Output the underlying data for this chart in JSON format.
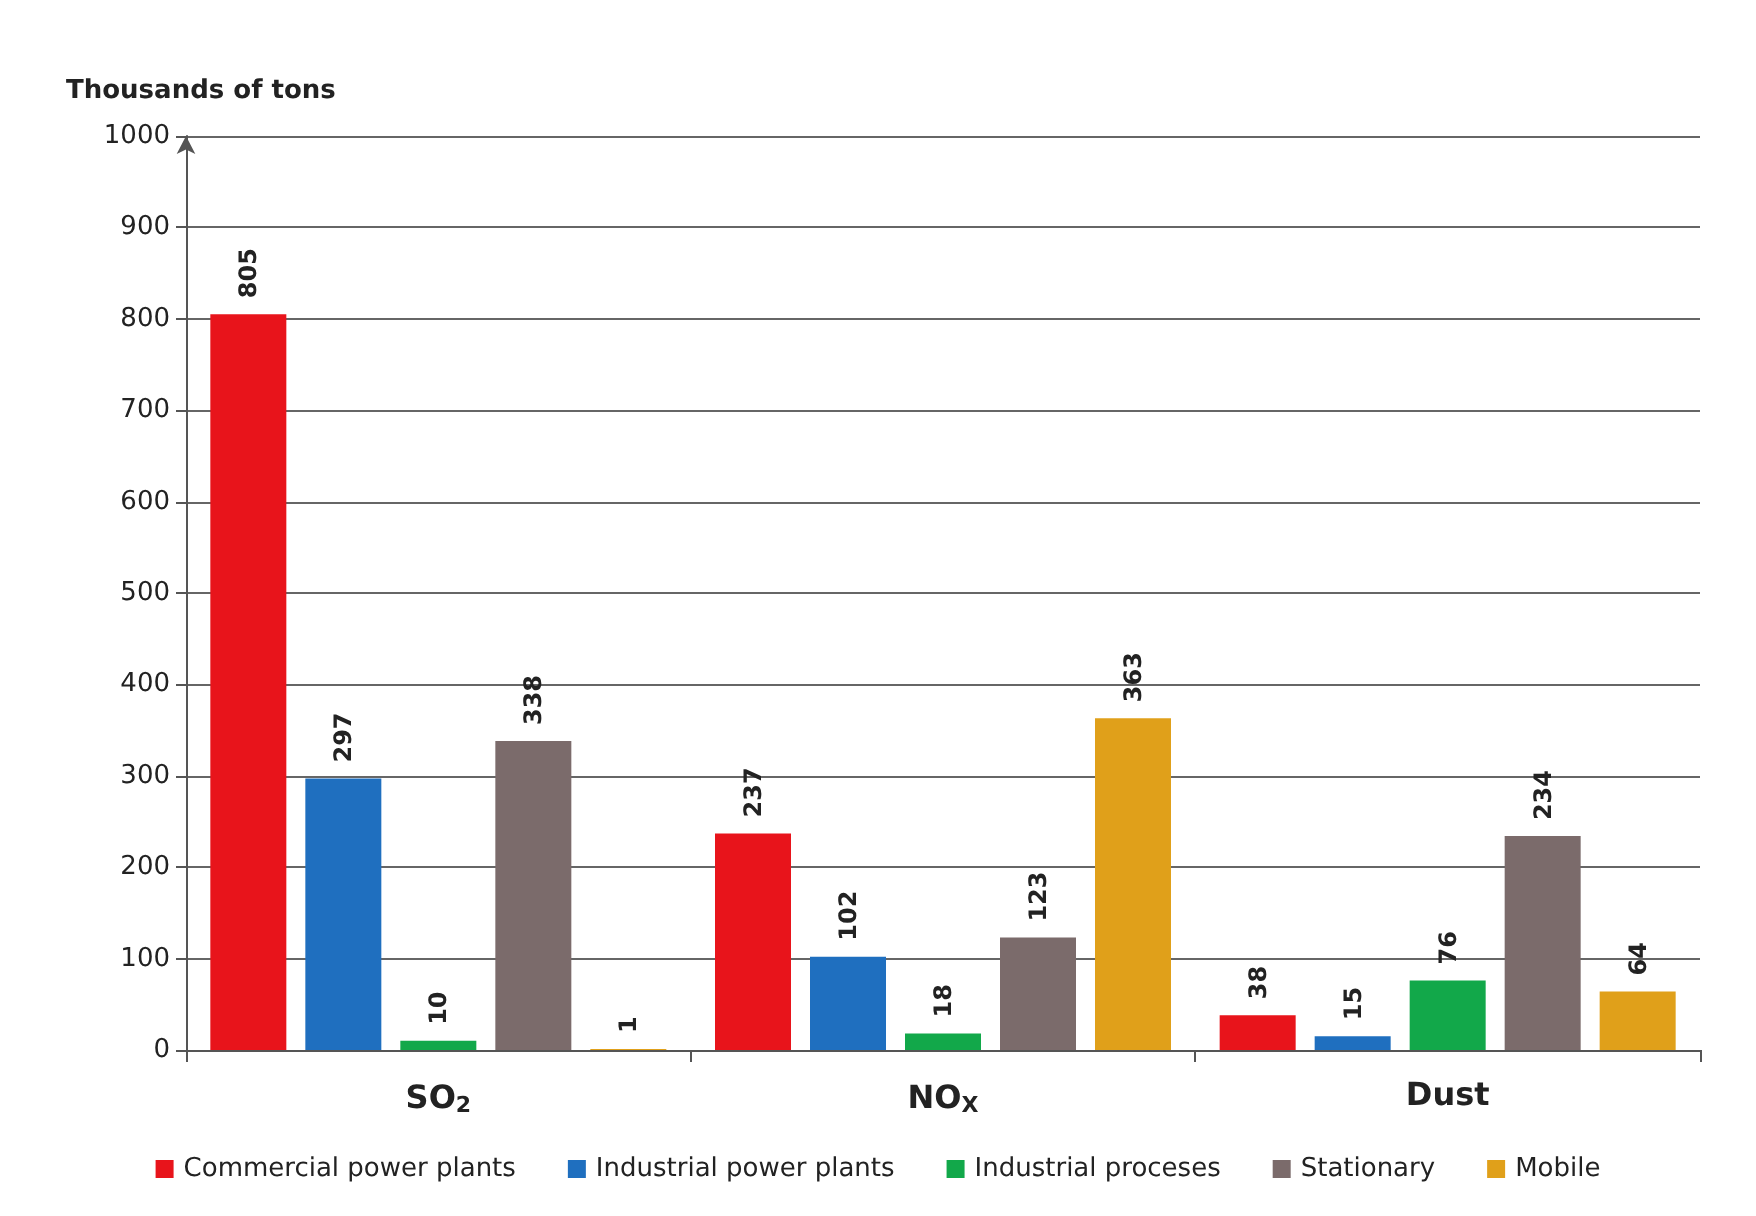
{
  "chart_data": {
    "type": "bar",
    "ylabel": "Thousands of tons",
    "categories": [
      "SO$_{2}$",
      "NO$_{X}$",
      "Dust"
    ],
    "series": [
      {
        "name": "Commercial power plants",
        "color": "#e8141b",
        "values": [
          805,
          237,
          38
        ]
      },
      {
        "name": "Industrial power plants",
        "color": "#1f6fbf",
        "values": [
          297,
          102,
          15
        ]
      },
      {
        "name": "Industrial proceses",
        "color": "#12a84a",
        "values": [
          10,
          18,
          76
        ]
      },
      {
        "name": "Stationary",
        "color": "#7b6b6b",
        "values": [
          338,
          123,
          234
        ]
      },
      {
        "name": "Mobile",
        "color": "#e0a01a",
        "values": [
          1,
          363,
          64
        ]
      }
    ],
    "ylim": [
      0,
      1000
    ],
    "yticks": [
      0,
      100,
      200,
      300,
      400,
      500,
      600,
      700,
      800,
      900,
      1000
    ],
    "grid": "y",
    "legend": "bottom",
    "data_labels": true
  }
}
